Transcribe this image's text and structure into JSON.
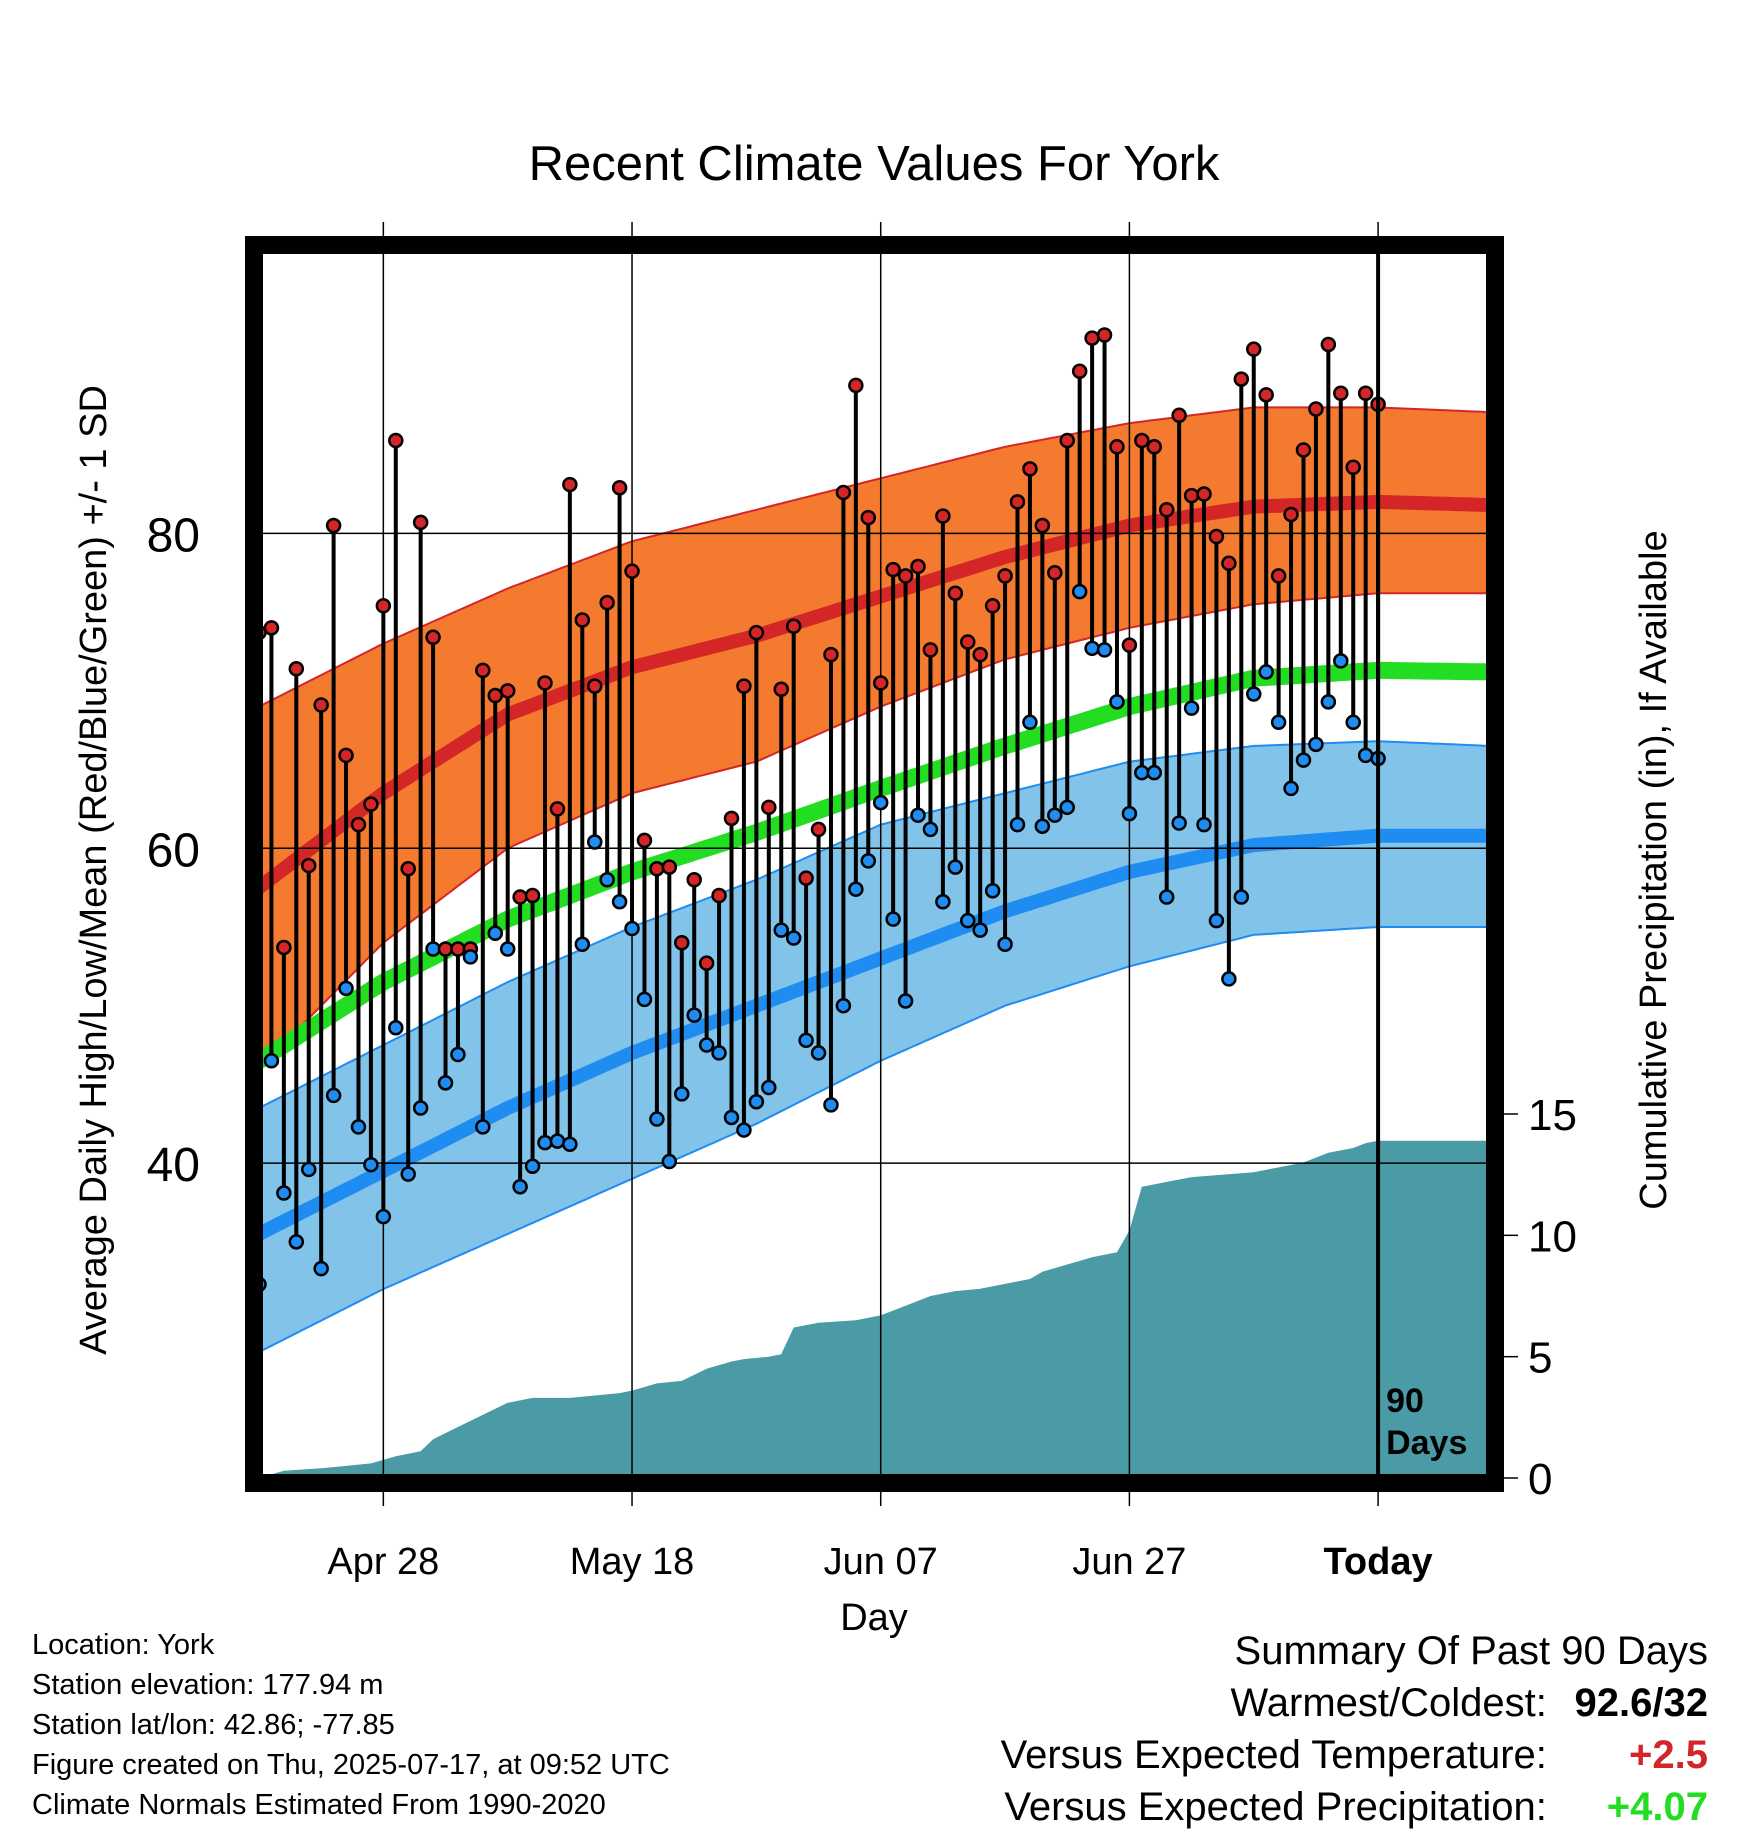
{
  "chart_data": {
    "type": "line",
    "title": "Recent Climate Values For York",
    "xlabel": "Day",
    "ylabel_left": "Average Daily High/Low/Mean (Red/Blue/Green) +/- 1 SD",
    "ylabel_right": "Cumulative Precipitation (in), If Available",
    "x_tick_labels": [
      "Apr 28",
      "May 18",
      "Jun 07",
      "Jun 27",
      "Today"
    ],
    "x_tick_days": [
      -80,
      -60,
      -40,
      -20,
      0
    ],
    "x_range_days": [
      -90,
      9
    ],
    "y_temp_range": [
      20,
      98
    ],
    "y_temp_ticks": [
      40,
      60,
      80
    ],
    "y_precip_range": [
      0,
      15
    ],
    "y_precip_ticks": [
      0,
      5,
      10,
      15
    ],
    "today_marker_label": "90 Days",
    "colors": {
      "high_band": "#F37A2E",
      "high_mean": "#D42626",
      "low_band": "#82C3EA",
      "low_mean": "#1E8CF0",
      "daily_mean": "#22DD22",
      "precip": "#4A9BA5",
      "high_dot": "#D42626",
      "low_dot": "#1E8CF0"
    },
    "normal_high_mean": [
      [
        -90,
        57.5
      ],
      [
        -80,
        63.5
      ],
      [
        -70,
        68.5
      ],
      [
        -60,
        71.5
      ],
      [
        -50,
        73.5
      ],
      [
        -40,
        76
      ],
      [
        -30,
        78.5
      ],
      [
        -20,
        80.5
      ],
      [
        -10,
        81.7
      ],
      [
        0,
        82
      ],
      [
        9,
        81.8
      ]
    ],
    "normal_high_sd_upper": [
      [
        -90,
        69
      ],
      [
        -80,
        73
      ],
      [
        -70,
        76.5
      ],
      [
        -60,
        79.5
      ],
      [
        -50,
        81.5
      ],
      [
        -40,
        83.5
      ],
      [
        -30,
        85.5
      ],
      [
        -20,
        87
      ],
      [
        -10,
        88
      ],
      [
        0,
        88
      ],
      [
        9,
        87.7
      ]
    ],
    "normal_high_sd_lower": [
      [
        -90,
        46
      ],
      [
        -80,
        54
      ],
      [
        -70,
        60
      ],
      [
        -60,
        63.5
      ],
      [
        -50,
        65.5
      ],
      [
        -40,
        69
      ],
      [
        -30,
        72
      ],
      [
        -20,
        74
      ],
      [
        -10,
        75.5
      ],
      [
        0,
        76.2
      ],
      [
        9,
        76.2
      ]
    ],
    "normal_mean": [
      [
        -90,
        46.5
      ],
      [
        -80,
        51.5
      ],
      [
        -70,
        55.5
      ],
      [
        -60,
        58.5
      ],
      [
        -50,
        61
      ],
      [
        -40,
        63.8
      ],
      [
        -30,
        66.5
      ],
      [
        -20,
        69
      ],
      [
        -10,
        70.8
      ],
      [
        0,
        71.3
      ],
      [
        9,
        71.2
      ]
    ],
    "normal_low_mean": [
      [
        -90,
        35.5
      ],
      [
        -80,
        39.5
      ],
      [
        -70,
        43.5
      ],
      [
        -60,
        47
      ],
      [
        -50,
        50
      ],
      [
        -40,
        53
      ],
      [
        -30,
        56
      ],
      [
        -20,
        58.5
      ],
      [
        -10,
        60.2
      ],
      [
        0,
        60.8
      ],
      [
        9,
        60.8
      ]
    ],
    "normal_low_sd_upper": [
      [
        -90,
        43.5
      ],
      [
        -80,
        47.5
      ],
      [
        -70,
        51.5
      ],
      [
        -60,
        55
      ],
      [
        -50,
        58
      ],
      [
        -40,
        61.5
      ],
      [
        -30,
        63.5
      ],
      [
        -20,
        65.5
      ],
      [
        -10,
        66.5
      ],
      [
        0,
        66.8
      ],
      [
        9,
        66.5
      ]
    ],
    "normal_low_sd_lower": [
      [
        -90,
        28
      ],
      [
        -80,
        32
      ],
      [
        -70,
        35.5
      ],
      [
        -60,
        39
      ],
      [
        -50,
        42.5
      ],
      [
        -40,
        46.5
      ],
      [
        -30,
        50
      ],
      [
        -20,
        52.5
      ],
      [
        -10,
        54.5
      ],
      [
        0,
        55
      ],
      [
        9,
        55
      ]
    ],
    "daily_high": [
      73.7,
      74.0,
      53.7,
      71.4,
      58.9,
      69.1,
      80.5,
      65.9,
      61.5,
      62.8,
      75.4,
      85.9,
      58.7,
      80.7,
      73.4,
      53.6,
      53.6,
      53.6,
      71.3,
      69.7,
      70.0,
      56.9,
      57.0,
      70.5,
      62.5,
      83.1,
      74.5,
      70.3,
      75.6,
      82.9,
      77.6,
      60.5,
      58.7,
      58.8,
      54.0,
      58.0,
      52.7,
      57.0,
      61.9,
      70.3,
      73.7,
      62.6,
      70.1,
      74.1,
      58.1,
      61.2,
      72.3,
      82.6,
      89.4,
      81.0,
      70.5,
      77.7,
      77.3,
      77.9,
      72.6,
      81.1,
      76.2,
      73.1,
      72.3,
      75.4,
      77.3,
      82.0,
      84.1,
      80.5,
      77.5,
      85.9,
      90.3,
      92.4,
      92.6,
      85.5,
      72.9,
      85.9,
      85.5,
      81.5,
      87.5,
      82.4,
      82.5,
      79.8,
      78.1,
      89.8,
      91.7,
      88.8,
      77.3,
      81.2,
      85.3,
      87.9,
      92.0,
      88.9,
      84.2,
      88.9,
      88.2
    ],
    "daily_low": [
      32.3,
      46.5,
      38.1,
      35.0,
      39.6,
      33.3,
      44.3,
      51.1,
      42.3,
      39.9,
      36.6,
      48.6,
      39.3,
      43.5,
      53.6,
      45.1,
      46.9,
      53.1,
      42.3,
      54.6,
      53.6,
      38.5,
      39.8,
      41.3,
      41.4,
      41.2,
      53.9,
      60.4,
      58.0,
      56.6,
      54.9,
      50.4,
      42.8,
      40.1,
      44.4,
      49.4,
      47.5,
      47.0,
      42.9,
      42.1,
      43.9,
      44.8,
      54.8,
      54.3,
      47.8,
      47.0,
      43.7,
      50.0,
      57.4,
      59.2,
      62.9,
      55.5,
      50.3,
      62.1,
      61.2,
      56.6,
      58.8,
      55.4,
      54.8,
      57.3,
      53.9,
      61.5,
      68.0,
      61.4,
      62.1,
      62.6,
      76.3,
      72.7,
      72.6,
      69.3,
      62.2,
      64.8,
      64.8,
      56.9,
      61.6,
      68.9,
      61.5,
      55.4,
      51.7,
      56.9,
      69.8,
      71.2,
      68.0,
      63.8,
      65.6,
      66.6,
      69.3,
      71.9,
      68.0,
      65.9,
      65.7
    ],
    "daily_days": [
      -90,
      -89,
      -88,
      -87,
      -86,
      -85,
      -84,
      -83,
      -82,
      -81,
      -80,
      -79,
      -78,
      -77,
      -76,
      -75,
      -74,
      -73,
      -72,
      -71,
      -70,
      -69,
      -68,
      -67,
      -66,
      -65,
      -64,
      -63,
      -62,
      -61,
      -60,
      -59,
      -58,
      -57,
      -56,
      -55,
      -54,
      -53,
      -52,
      -51,
      -50,
      -49,
      -48,
      -47,
      -46,
      -45,
      -44,
      -43,
      -42,
      -41,
      -40,
      -39,
      -38,
      -37,
      -36,
      -35,
      -34,
      -33,
      -32,
      -31,
      -30,
      -29,
      -28,
      -27,
      -26,
      -25,
      -24,
      -23,
      -22,
      -21,
      -20,
      -19,
      -18,
      -17,
      -16,
      -15,
      -14,
      -13,
      -12,
      -11,
      -10,
      -9,
      -8,
      -7,
      -6,
      -5,
      -4,
      -3,
      -2,
      -1,
      0
    ],
    "cumulative_precip": [
      [
        -90,
        0
      ],
      [
        -88,
        0.3
      ],
      [
        -85,
        0.4
      ],
      [
        -83,
        0.5
      ],
      [
        -81,
        0.6
      ],
      [
        -79,
        0.9
      ],
      [
        -77,
        1.1
      ],
      [
        -76,
        1.6
      ],
      [
        -74,
        2.1
      ],
      [
        -72,
        2.6
      ],
      [
        -70,
        3.1
      ],
      [
        -68,
        3.3
      ],
      [
        -65,
        3.3
      ],
      [
        -63,
        3.4
      ],
      [
        -61,
        3.5
      ],
      [
        -60,
        3.6
      ],
      [
        -58,
        3.9
      ],
      [
        -56,
        4.0
      ],
      [
        -54,
        4.5
      ],
      [
        -52,
        4.8
      ],
      [
        -51,
        4.9
      ],
      [
        -49,
        5.0
      ],
      [
        -48,
        5.1
      ],
      [
        -47,
        6.2
      ],
      [
        -45,
        6.4
      ],
      [
        -42,
        6.5
      ],
      [
        -40,
        6.7
      ],
      [
        -38,
        7.1
      ],
      [
        -36,
        7.5
      ],
      [
        -34,
        7.7
      ],
      [
        -32,
        7.8
      ],
      [
        -30,
        8.0
      ],
      [
        -28,
        8.2
      ],
      [
        -27,
        8.5
      ],
      [
        -25,
        8.8
      ],
      [
        -23,
        9.1
      ],
      [
        -21,
        9.3
      ],
      [
        -20,
        10.2
      ],
      [
        -19,
        12.0
      ],
      [
        -17,
        12.2
      ],
      [
        -15,
        12.4
      ],
      [
        -10,
        12.6
      ],
      [
        -8,
        12.8
      ],
      [
        -6,
        13.0
      ],
      [
        -4,
        13.4
      ],
      [
        -2,
        13.6
      ],
      [
        -1,
        13.8
      ],
      [
        0,
        13.9
      ],
      [
        9,
        13.9
      ]
    ],
    "grid": true
  },
  "meta": {
    "location": "Location: York",
    "elevation": "Station elevation: 177.94 m",
    "latlon": "Station lat/lon: 42.86; -77.85",
    "created": "Figure created on Thu, 2025-07-17, at 09:52 UTC",
    "normals": "Climate Normals Estimated From 1990-2020"
  },
  "summary": {
    "heading": "Summary Of Past 90 Days",
    "warmest_label": "Warmest/Coldest:",
    "warmest_value": "92.6/32",
    "temp_label": "Versus Expected Temperature:",
    "temp_value": "+2.5",
    "temp_color": "#D42626",
    "precip_label": "Versus Expected Precipitation:",
    "precip_value": "+4.07",
    "precip_color": "#22DD22"
  }
}
